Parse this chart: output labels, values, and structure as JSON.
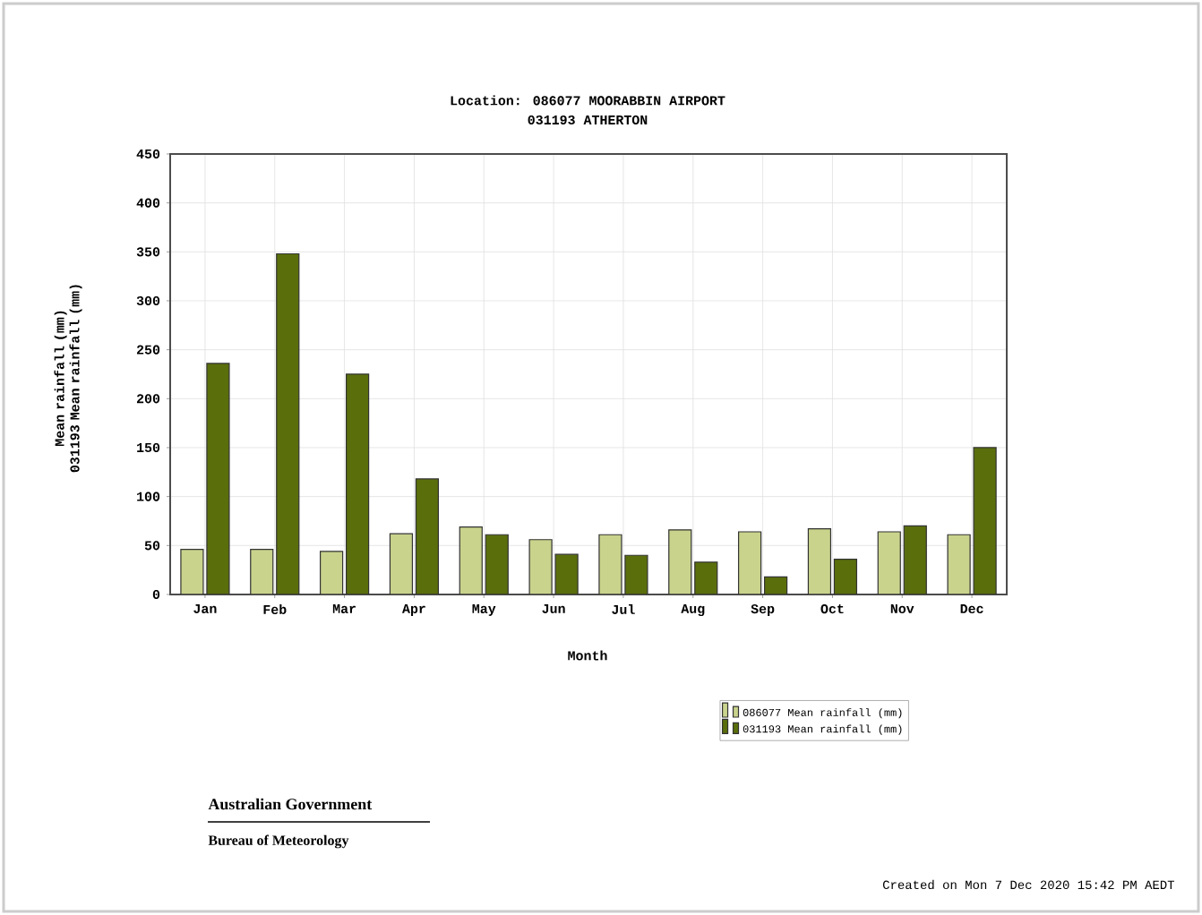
{
  "chart_data": {
    "type": "bar",
    "title": "Location: 086077 MOORABBIN AIRPORT",
    "subtitle": "031193 ATHERTON",
    "xlabel": "Month",
    "ylabel": "Mean rainfall (mm)\n031193 Mean rainfall (mm)",
    "categories": [
      "Jan",
      "Feb",
      "Mar",
      "Apr",
      "May",
      "Jun",
      "Jul",
      "Aug",
      "Sep",
      "Oct",
      "Nov",
      "Dec"
    ],
    "series": [
      {
        "name": "086077 Mean rainfall (mm)",
        "color": "#c9d38c",
        "values": [
          46,
          46,
          44,
          62,
          69,
          56,
          61,
          66,
          64,
          67,
          64,
          61
        ]
      },
      {
        "name": "031193 Mean rainfall (mm)",
        "color": "#5a6e0c",
        "values": [
          236,
          348,
          225,
          118,
          61,
          41,
          40,
          33,
          18,
          36,
          70,
          150
        ]
      }
    ],
    "ylim": [
      0,
      450
    ],
    "yticks": [
      0,
      50,
      100,
      150,
      200,
      250,
      300,
      350,
      400,
      450
    ],
    "grid": true,
    "legend": "bottom",
    "annotations": [
      "Australian Government",
      "Bureau of Meteorology",
      "Created on Mon  7 Dec 2020 15:42 PM AEDT"
    ]
  }
}
